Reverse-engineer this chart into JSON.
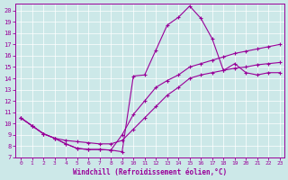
{
  "xlabel": "Windchill (Refroidissement éolien,°C)",
  "bg_color": "#cce8e8",
  "line_color": "#990099",
  "xlim_min": -0.5,
  "xlim_max": 23.4,
  "ylim_min": 7,
  "ylim_max": 20.6,
  "xticks": [
    0,
    1,
    2,
    3,
    4,
    5,
    6,
    7,
    8,
    9,
    10,
    11,
    12,
    13,
    14,
    15,
    16,
    17,
    18,
    19,
    20,
    21,
    22,
    23
  ],
  "yticks": [
    7,
    8,
    9,
    10,
    11,
    12,
    13,
    14,
    15,
    16,
    17,
    18,
    19,
    20
  ],
  "curve1_x": [
    0,
    1,
    2,
    3,
    4,
    5,
    6,
    7,
    8,
    9,
    10,
    11,
    12,
    13,
    14,
    15,
    16,
    17,
    18,
    19,
    20,
    21,
    22,
    23
  ],
  "curve1_y": [
    10.5,
    9.8,
    9.1,
    8.7,
    8.2,
    7.8,
    7.7,
    7.7,
    7.65,
    7.5,
    14.2,
    14.3,
    16.5,
    18.7,
    19.4,
    20.4,
    19.3,
    17.5,
    14.7,
    15.3,
    14.5,
    14.3,
    14.5,
    14.5
  ],
  "curve2_x": [
    0,
    1,
    2,
    3,
    4,
    5,
    6,
    7,
    8,
    9,
    10,
    11,
    12,
    13,
    14,
    15,
    16,
    17,
    18,
    19,
    20,
    21,
    22,
    23
  ],
  "curve2_y": [
    10.5,
    9.8,
    9.1,
    8.7,
    8.2,
    7.8,
    7.7,
    7.7,
    7.65,
    9.0,
    10.8,
    12.0,
    13.2,
    13.8,
    14.3,
    15.0,
    15.3,
    15.6,
    15.9,
    16.2,
    16.4,
    16.6,
    16.8,
    17.0
  ],
  "curve3_x": [
    0,
    1,
    2,
    3,
    4,
    5,
    6,
    7,
    8,
    9,
    10,
    11,
    12,
    13,
    14,
    15,
    16,
    17,
    18,
    19,
    20,
    21,
    22,
    23
  ],
  "curve3_y": [
    10.5,
    9.8,
    9.1,
    8.7,
    8.5,
    8.4,
    8.3,
    8.2,
    8.2,
    8.5,
    9.5,
    10.5,
    11.5,
    12.5,
    13.2,
    14.0,
    14.3,
    14.5,
    14.7,
    14.9,
    15.0,
    15.2,
    15.3,
    15.4
  ]
}
